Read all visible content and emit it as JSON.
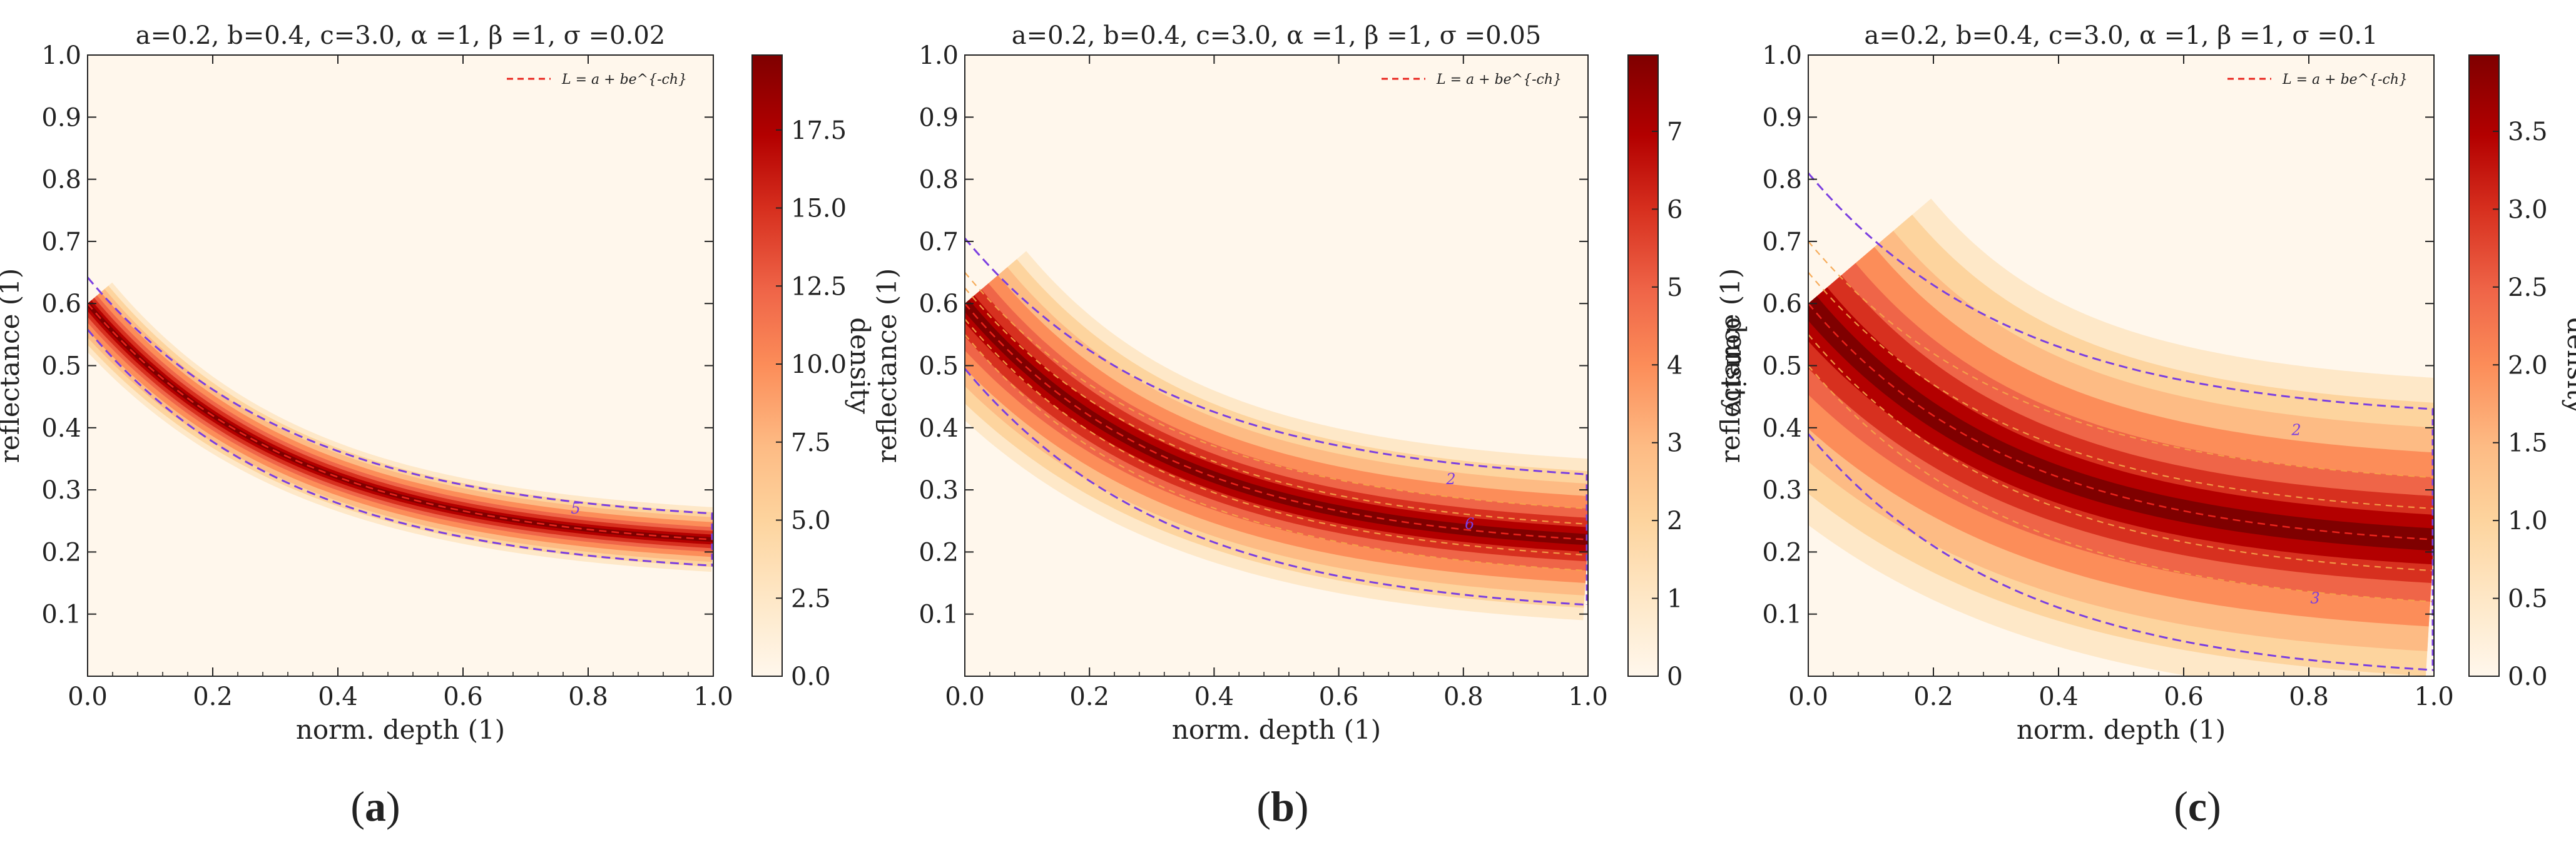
{
  "chart_data": [
    {
      "type": "heatmap",
      "panel_label": "a",
      "title": "a=0.2, b=0.4, c=3.0, α =1, β =1, σ =0.02",
      "params": {
        "a": 0.2,
        "b": 0.4,
        "c": 3.0,
        "alpha": 1,
        "beta": 1,
        "sigma": 0.02
      },
      "xlabel": "norm. depth (1)",
      "ylabel": "reflectance (1)",
      "xlim": [
        0,
        1
      ],
      "ylim": [
        0,
        1
      ],
      "xticks": [
        "0.0",
        "0.2",
        "0.4",
        "0.6",
        "0.8",
        "1.0"
      ],
      "yticks": [
        "0.1",
        "0.2",
        "0.3",
        "0.4",
        "0.5",
        "0.6",
        "0.7",
        "0.8",
        "0.9",
        "1.0"
      ],
      "legend": {
        "label": "L = a + be^{-ch}",
        "location": "top-right",
        "style": "red dashed"
      },
      "colorbar": {
        "label": "density",
        "min": 0,
        "max": 19.9,
        "ticks": [
          "0.0",
          "2.5",
          "5.0",
          "7.5",
          "10.0",
          "12.5",
          "15.0",
          "17.5"
        ]
      },
      "contour_labels": [
        "5"
      ],
      "contour_levels": [
        5
      ],
      "curve_samples": {
        "x": [
          0.0,
          0.2,
          0.4,
          0.6,
          0.8,
          1.0
        ],
        "y": [
          0.6,
          0.42,
          0.32,
          0.266,
          0.236,
          0.22
        ]
      }
    },
    {
      "type": "heatmap",
      "panel_label": "b",
      "title": "a=0.2, b=0.4, c=3.0, α =1, β =1, σ =0.05",
      "params": {
        "a": 0.2,
        "b": 0.4,
        "c": 3.0,
        "alpha": 1,
        "beta": 1,
        "sigma": 0.05
      },
      "xlabel": "norm. depth (1)",
      "ylabel": "reflectance (1)",
      "xlim": [
        0,
        1
      ],
      "ylim": [
        0,
        1
      ],
      "xticks": [
        "0.0",
        "0.2",
        "0.4",
        "0.6",
        "0.8",
        "1.0"
      ],
      "yticks": [
        "0.1",
        "0.2",
        "0.3",
        "0.4",
        "0.5",
        "0.6",
        "0.7",
        "0.8",
        "0.9",
        "1.0"
      ],
      "legend": {
        "label": "L = a + be^{-ch}",
        "location": "top-right",
        "style": "red dashed"
      },
      "colorbar": {
        "label": "density",
        "min": 0,
        "max": 7.98,
        "ticks": [
          "0",
          "1",
          "2",
          "3",
          "4",
          "5",
          "6",
          "7"
        ]
      },
      "contour_labels": [
        "2",
        "6"
      ],
      "contour_levels": [
        2,
        6
      ],
      "curve_samples": {
        "x": [
          0.0,
          0.2,
          0.4,
          0.6,
          0.8,
          1.0
        ],
        "y": [
          0.6,
          0.42,
          0.32,
          0.266,
          0.236,
          0.22
        ]
      }
    },
    {
      "type": "heatmap",
      "panel_label": "c",
      "title": "a=0.2, b=0.4, c=3.0, α =1, β =1, σ =0.1",
      "params": {
        "a": 0.2,
        "b": 0.4,
        "c": 3.0,
        "alpha": 1,
        "beta": 1,
        "sigma": 0.1
      },
      "xlabel": "norm. depth (1)",
      "ylabel": "reflectance (1)",
      "xlim": [
        0,
        1
      ],
      "ylim": [
        0,
        1
      ],
      "xticks": [
        "0.0",
        "0.2",
        "0.4",
        "0.6",
        "0.8",
        "1.0"
      ],
      "yticks": [
        "0.1",
        "0.2",
        "0.3",
        "0.4",
        "0.5",
        "0.6",
        "0.7",
        "0.8",
        "0.9",
        "1.0"
      ],
      "legend": {
        "label": "L = a + be^{-ch}",
        "location": "top-right",
        "style": "red dashed"
      },
      "colorbar": {
        "label": "density",
        "min": 0,
        "max": 3.99,
        "ticks": [
          "0.0",
          "0.5",
          "1.0",
          "1.5",
          "2.0",
          "2.5",
          "3.0",
          "3.5"
        ]
      },
      "contour_labels": [
        "2",
        "3"
      ],
      "contour_levels": [
        2,
        3
      ],
      "curve_samples": {
        "x": [
          0.0,
          0.2,
          0.4,
          0.6,
          0.8,
          1.0
        ],
        "y": [
          0.6,
          0.42,
          0.32,
          0.266,
          0.236,
          0.22
        ]
      }
    }
  ],
  "colors": {
    "background_low": "#fff7ec",
    "peak": "#7f0000",
    "fit_line": "#e8231c",
    "outer_contour": "#7b3fe0",
    "inner_contour": "#f5a34a"
  }
}
